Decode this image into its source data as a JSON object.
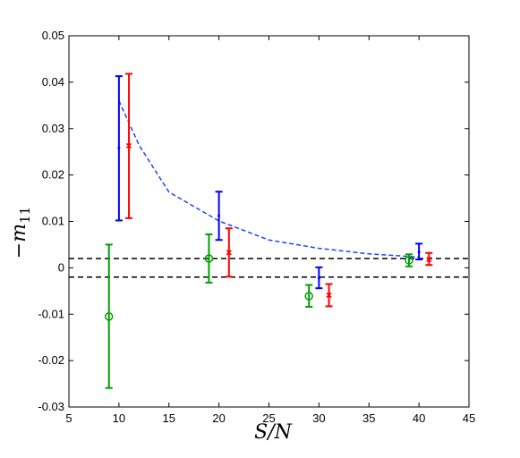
{
  "chart_data": {
    "type": "scatter",
    "xlabel": "S/N",
    "ylabel": "−m",
    "ylabel_subscript": "11",
    "xlim": [
      5,
      45
    ],
    "ylim": [
      -0.03,
      0.05
    ],
    "grid": false,
    "x_ticks": [
      5,
      10,
      15,
      20,
      25,
      30,
      35,
      40,
      45
    ],
    "x_tick_labels": [
      "5",
      "10",
      "15",
      "20",
      "25",
      "30",
      "35",
      "40",
      "45"
    ],
    "y_ticks": [
      -0.03,
      -0.02,
      -0.01,
      0,
      0.01,
      0.02,
      0.03,
      0.04,
      0.05
    ],
    "y_tick_labels": [
      "-0.03",
      "-0.02",
      "-0.01",
      "0",
      "0.01",
      "0.02",
      "0.03",
      "0.04",
      "0.05"
    ],
    "series": [
      {
        "color": "#0000ff",
        "marker": "dot",
        "points": [
          {
            "x": 10,
            "y": 0.0258,
            "lo": 0.0102,
            "hi": 0.0413
          },
          {
            "x": 20,
            "y": 0.0112,
            "lo": 0.006,
            "hi": 0.0164
          },
          {
            "x": 30,
            "y": -0.0022,
            "lo": -0.0044,
            "hi": 0.0001
          },
          {
            "x": 40,
            "y": 0.0034,
            "lo": 0.0018,
            "hi": 0.0052
          }
        ]
      },
      {
        "color": "#ff0000",
        "marker": "x",
        "points": [
          {
            "x": 11,
            "y": 0.0263,
            "lo": 0.0107,
            "hi": 0.0418
          },
          {
            "x": 21,
            "y": 0.0033,
            "lo": -0.0019,
            "hi": 0.0085
          },
          {
            "x": 31,
            "y": -0.0059,
            "lo": -0.0083,
            "hi": -0.0035
          },
          {
            "x": 41,
            "y": 0.0018,
            "lo": 0.0006,
            "hi": 0.0032
          }
        ]
      },
      {
        "color": "#00a000",
        "marker": "circle",
        "points": [
          {
            "x": 9,
            "y": -0.0105,
            "lo": -0.0259,
            "hi": 0.005
          },
          {
            "x": 19,
            "y": 0.002,
            "lo": -0.0032,
            "hi": 0.0072
          },
          {
            "x": 29,
            "y": -0.0061,
            "lo": -0.0084,
            "hi": -0.0037
          },
          {
            "x": 39,
            "y": 0.0016,
            "lo": 0.0003,
            "hi": 0.0029
          }
        ]
      }
    ],
    "curve": {
      "color": "#2040ff",
      "style": "dashed",
      "x": [
        10,
        12,
        15,
        20,
        25,
        30,
        35,
        40
      ],
      "y": [
        0.036,
        0.0265,
        0.0163,
        0.0101,
        0.006,
        0.0042,
        0.003,
        0.0023
      ]
    },
    "reference_lines": {
      "color": "#000000",
      "style": "dashed",
      "y": [
        0.002,
        -0.002
      ]
    }
  }
}
